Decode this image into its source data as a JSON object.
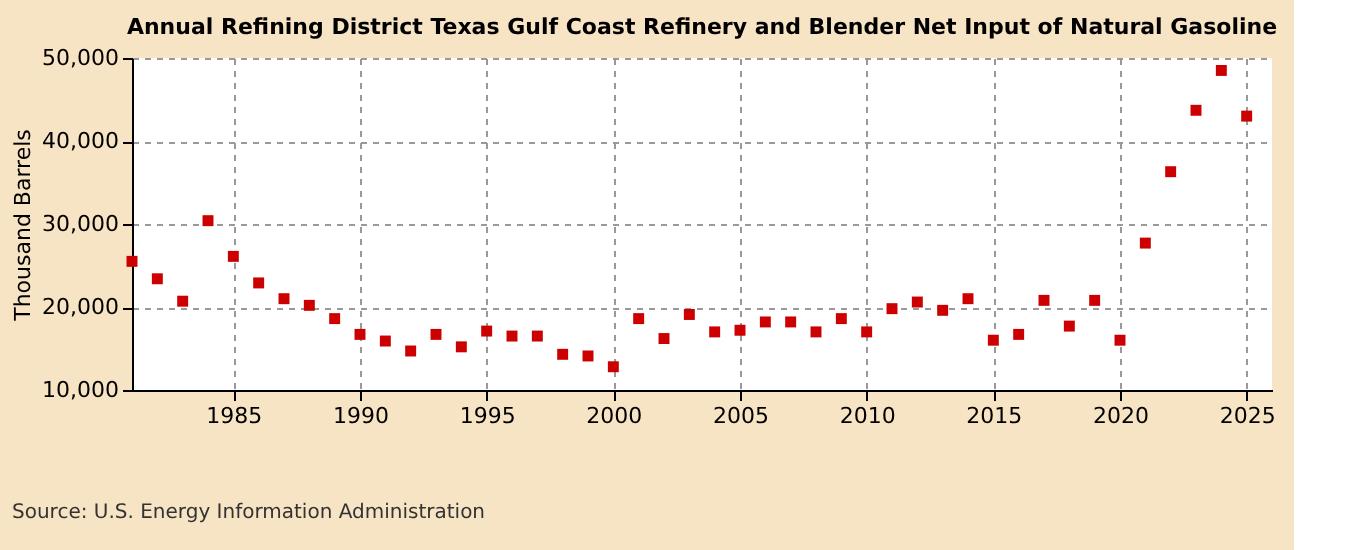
{
  "chart_data": {
    "type": "scatter",
    "title": "Annual Refining District Texas Gulf Coast Refinery and Blender Net Input of Natural Gasoline",
    "ylabel": "Thousand Barrels",
    "x": [
      1981,
      1982,
      1983,
      1984,
      1985,
      1986,
      1987,
      1988,
      1989,
      1990,
      1991,
      1992,
      1993,
      1994,
      1995,
      1996,
      1997,
      1998,
      1999,
      2000,
      2001,
      2002,
      2003,
      2004,
      2005,
      2006,
      2007,
      2008,
      2009,
      2010,
      2011,
      2012,
      2013,
      2014,
      2015,
      2016,
      2017,
      2018,
      2019,
      2020,
      2021,
      2022,
      2023,
      2024,
      2025
    ],
    "series": [
      {
        "color": "#cc0000",
        "values": [
          25500,
          23400,
          20700,
          30400,
          26100,
          22900,
          21000,
          20200,
          18600,
          16700,
          15900,
          14700,
          16700,
          15200,
          17100,
          16500,
          16500,
          14300,
          14100,
          12800,
          18600,
          16200,
          19100,
          17000,
          17200,
          18200,
          18200,
          17000,
          18600,
          17000,
          19800,
          20600,
          19600,
          21000,
          16000,
          16700,
          20800,
          17700,
          20800,
          16000,
          27700,
          36300,
          43700,
          48500,
          43000
        ]
      }
    ],
    "xlim": [
      1981,
      2026
    ],
    "xticks": [
      1985,
      1990,
      1995,
      2000,
      2005,
      2010,
      2015,
      2020,
      2025
    ],
    "ylim": [
      10000,
      50000
    ],
    "yticks": [
      {
        "value": 10000,
        "label": "10,000"
      },
      {
        "value": 20000,
        "label": "20,000"
      },
      {
        "value": 30000,
        "label": "30,000"
      },
      {
        "value": 40000,
        "label": "40,000"
      },
      {
        "value": 50000,
        "label": "50,000"
      }
    ],
    "grid": true,
    "marker": "square",
    "annotations": [
      "Source: U.S. Energy Information Administration"
    ]
  }
}
